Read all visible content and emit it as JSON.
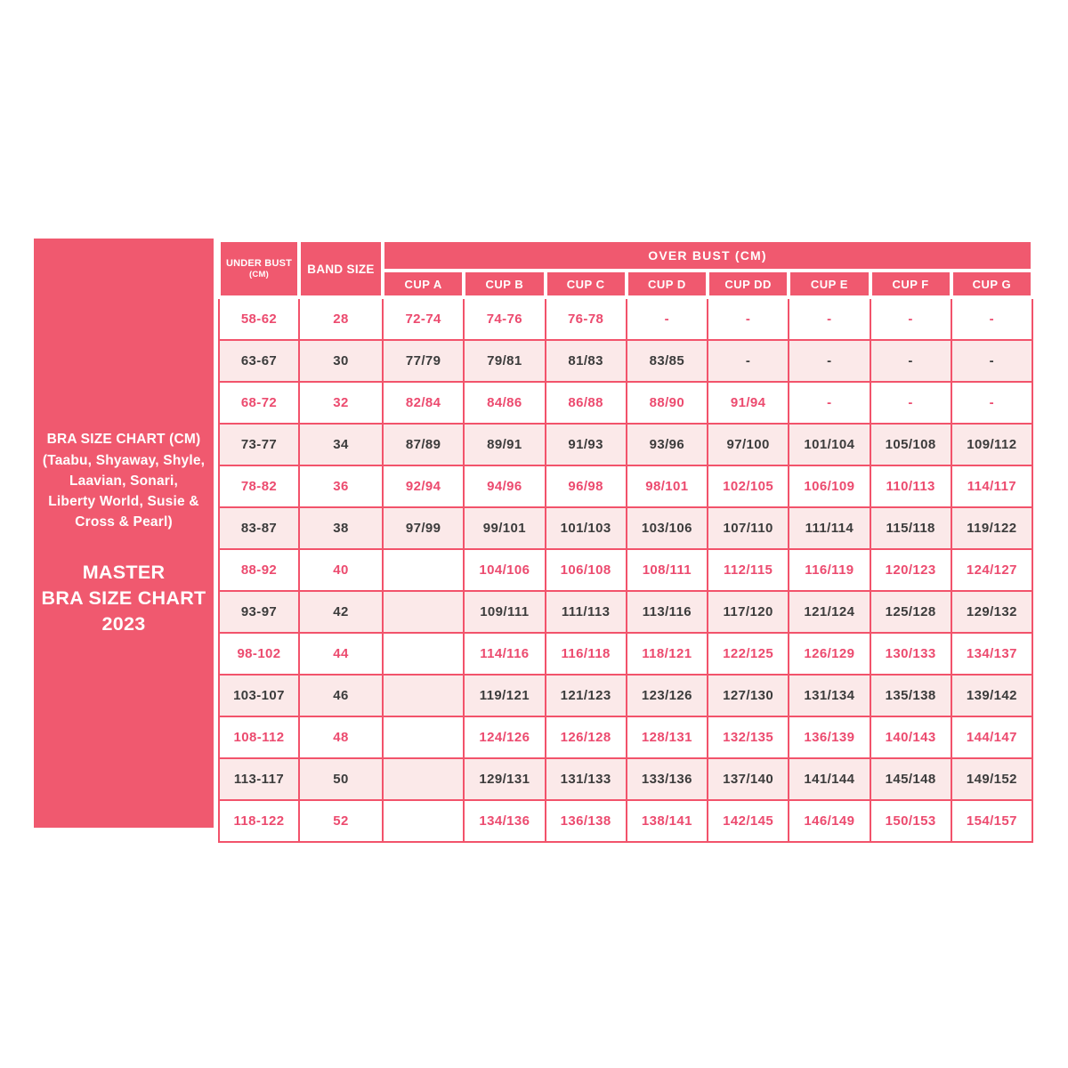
{
  "sidebar": {
    "brands_title": "BRA SIZE CHART (CM)",
    "brands_lines": [
      "(Taabu, Shyaway, Shyle,",
      "Laavian, Sonari,",
      "Liberty World, Susie &",
      "Cross & Pearl)"
    ],
    "master_lines": [
      "MASTER",
      "BRA SIZE CHART",
      "2023"
    ]
  },
  "table": {
    "headers": {
      "under_bust": "UNDER BUST",
      "under_bust_unit": "(CM)",
      "band_size": "BAND SIZE",
      "over_bust": "OVER BUST (CM)",
      "cups": [
        "CUP A",
        "CUP B",
        "CUP C",
        "CUP D",
        "CUP DD",
        "CUP E",
        "CUP F",
        "CUP G"
      ]
    },
    "row_styles": [
      "accent",
      "light",
      "accent",
      "light",
      "accent",
      "light",
      "accent",
      "light",
      "accent",
      "light",
      "accent",
      "light",
      "accent"
    ]
  },
  "chart_data": {
    "type": "table",
    "title": "MASTER BRA SIZE CHART 2023",
    "subtitle": "BRA SIZE CHART (CM) (Taabu, Shyaway, Shyle, Laavian, Sonari, Liberty World, Susie & Cross & Pearl)",
    "columns": [
      "UNDER BUST (CM)",
      "BAND SIZE",
      "CUP A",
      "CUP B",
      "CUP C",
      "CUP D",
      "CUP DD",
      "CUP E",
      "CUP F",
      "CUP G"
    ],
    "column_group": "OVER BUST (CM) spans CUP A through CUP G",
    "rows": [
      [
        "58-62",
        "28",
        "72-74",
        "74-76",
        "76-78",
        "-",
        "-",
        "-",
        "-",
        "-"
      ],
      [
        "63-67",
        "30",
        "77/79",
        "79/81",
        "81/83",
        "83/85",
        "-",
        "-",
        "-",
        "-"
      ],
      [
        "68-72",
        "32",
        "82/84",
        "84/86",
        "86/88",
        "88/90",
        "91/94",
        "-",
        "-",
        "-"
      ],
      [
        "73-77",
        "34",
        "87/89",
        "89/91",
        "91/93",
        "93/96",
        "97/100",
        "101/104",
        "105/108",
        "109/112"
      ],
      [
        "78-82",
        "36",
        "92/94",
        "94/96",
        "96/98",
        "98/101",
        "102/105",
        "106/109",
        "110/113",
        "114/117"
      ],
      [
        "83-87",
        "38",
        "97/99",
        "99/101",
        "101/103",
        "103/106",
        "107/110",
        "111/114",
        "115/118",
        "119/122"
      ],
      [
        "88-92",
        "40",
        "",
        "104/106",
        "106/108",
        "108/111",
        "112/115",
        "116/119",
        "120/123",
        "124/127"
      ],
      [
        "93-97",
        "42",
        "",
        "109/111",
        "111/113",
        "113/116",
        "117/120",
        "121/124",
        "125/128",
        "129/132"
      ],
      [
        "98-102",
        "44",
        "",
        "114/116",
        "116/118",
        "118/121",
        "122/125",
        "126/129",
        "130/133",
        "134/137"
      ],
      [
        "103-107",
        "46",
        "",
        "119/121",
        "121/123",
        "123/126",
        "127/130",
        "131/134",
        "135/138",
        "139/142"
      ],
      [
        "108-112",
        "48",
        "",
        "124/126",
        "126/128",
        "128/131",
        "132/135",
        "136/139",
        "140/143",
        "144/147"
      ],
      [
        "113-117",
        "50",
        "",
        "129/131",
        "131/133",
        "133/136",
        "137/140",
        "141/144",
        "145/148",
        "149/152"
      ],
      [
        "118-122",
        "52",
        "",
        "134/136",
        "136/138",
        "138/141",
        "142/145",
        "146/149",
        "150/153",
        "154/157"
      ]
    ]
  },
  "colors": {
    "accent_pink": "#f0596f",
    "border_pink": "#f2536b",
    "light_row_bg": "#fbe9e9",
    "accent_text": "#ec4b6f",
    "dark_text": "#3c3c3c",
    "header_text": "#ffffff",
    "page_bg": "#ffffff"
  }
}
